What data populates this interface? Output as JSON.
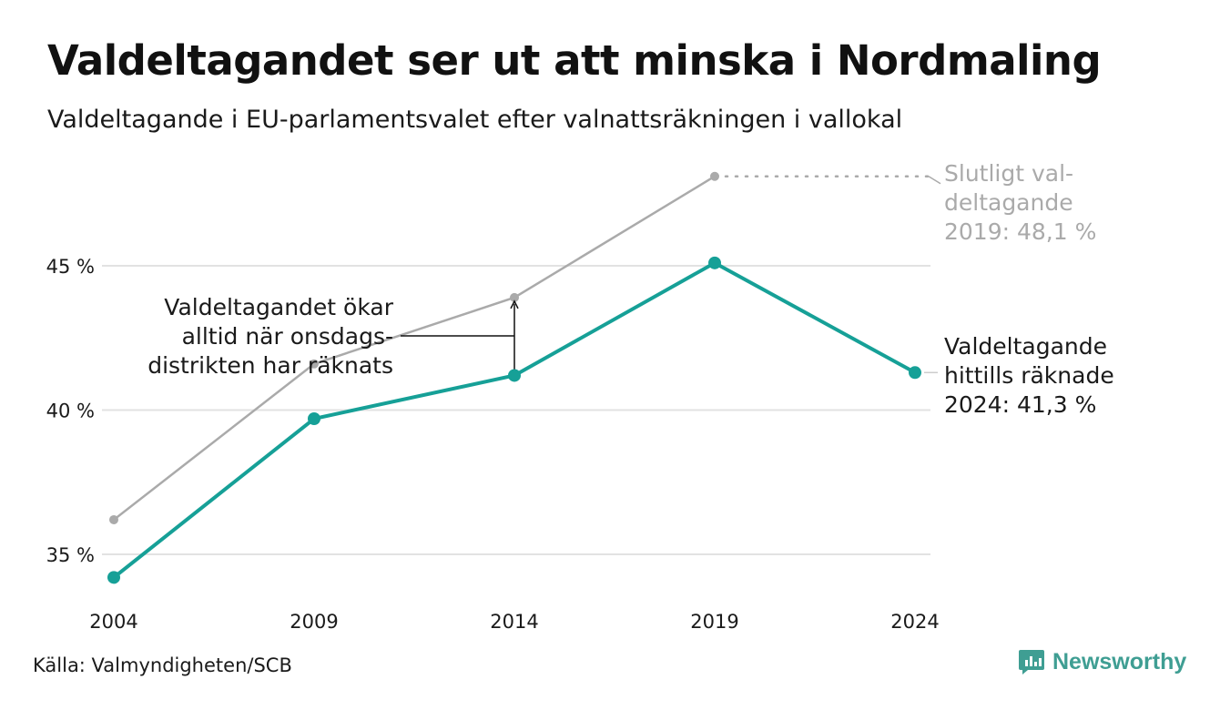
{
  "title": "Valdeltagandet ser ut att minska i Nordmaling",
  "subtitle": "Valdeltagande i EU-parlamentsvalet efter valnattsräkningen i vallokal",
  "source": "Källa: Valmyndigheten/SCB",
  "brand": "Newsworthy",
  "colors": {
    "primary": "#16a097",
    "final": "#aaaaaa",
    "grid": "#e2e2e2",
    "text": "#1a1a1a",
    "brand": "#3f9e93"
  },
  "chart_data": {
    "type": "line",
    "categories": [
      "2004",
      "2009",
      "2014",
      "2019",
      "2024"
    ],
    "ylim": [
      34,
      49
    ],
    "yticks": [
      35,
      40,
      45
    ],
    "ytick_labels": [
      "35 %",
      "40 %",
      "45 %"
    ],
    "grid": true,
    "series": [
      {
        "values": [
          34.2,
          39.7,
          41.2,
          45.1,
          41.3
        ]
      },
      {
        "values": [
          36.2,
          41.6,
          43.9,
          48.1,
          null
        ]
      }
    ],
    "annotations": {
      "final_2019": [
        "Slutligt val-",
        "deltagande",
        "2019: 48,1 %"
      ],
      "counted_2024": [
        "Valdeltagande",
        "hittills räknade",
        "2024: 41,3 %"
      ],
      "wednesday": [
        "Valdeltagandet ökar",
        "alltid när onsdags-",
        "distrikten har räknats"
      ]
    }
  }
}
